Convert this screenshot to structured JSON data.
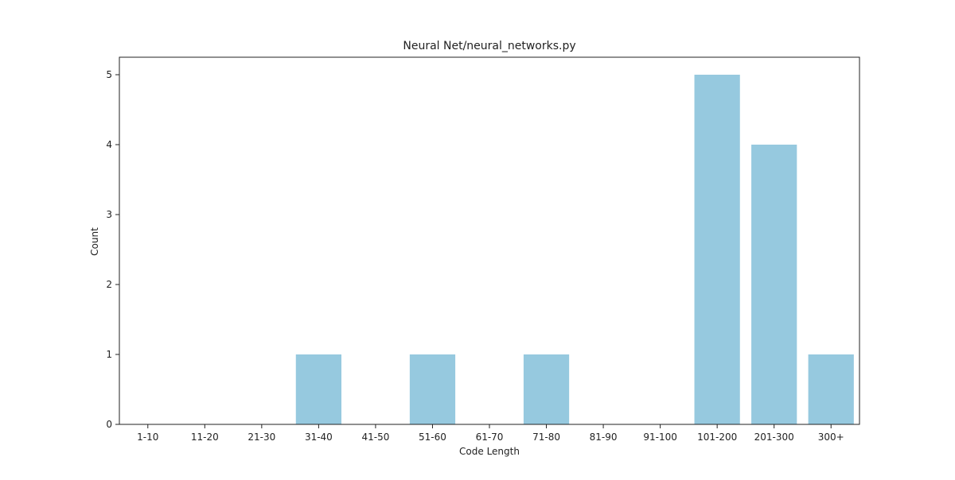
{
  "chart_data": {
    "type": "bar",
    "title": "Neural Net/neural_networks.py",
    "xlabel": "Code Length",
    "ylabel": "Count",
    "categories": [
      "1-10",
      "11-20",
      "21-30",
      "31-40",
      "41-50",
      "51-60",
      "61-70",
      "71-80",
      "81-90",
      "91-100",
      "101-200",
      "201-300",
      "300+"
    ],
    "values": [
      0,
      0,
      0,
      1,
      0,
      1,
      0,
      1,
      0,
      0,
      5,
      4,
      1
    ],
    "ylim": [
      0,
      5.25
    ],
    "yticks": [
      0,
      1,
      2,
      3,
      4,
      5
    ],
    "grid": false,
    "bar_color": "#96c9df"
  }
}
